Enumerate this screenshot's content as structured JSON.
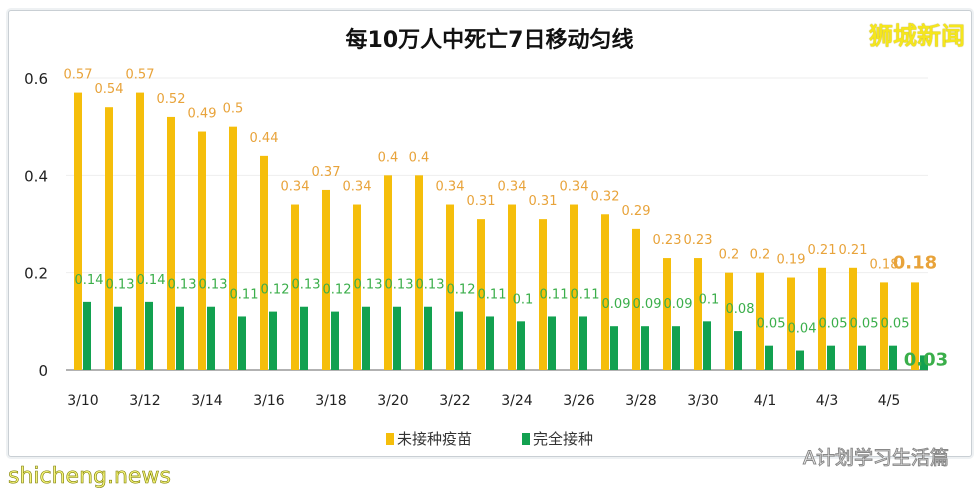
{
  "chart_data": {
    "type": "bar",
    "title": "每10万人中死亡7日移动匀线",
    "categories": [
      "3/10",
      "3/11",
      "3/12",
      "3/13",
      "3/14",
      "3/15",
      "3/16",
      "3/17",
      "3/18",
      "3/19",
      "3/20",
      "3/21",
      "3/22",
      "3/23",
      "3/24",
      "3/25",
      "3/26",
      "3/27",
      "3/28",
      "3/29",
      "3/30",
      "3/31",
      "4/1",
      "4/2",
      "4/3",
      "4/4",
      "4/5",
      "4/6"
    ],
    "tick_labels": [
      "3/10",
      "3/12",
      "3/14",
      "3/16",
      "3/18",
      "3/20",
      "3/22",
      "3/24",
      "3/26",
      "3/28",
      "3/30",
      "4/1",
      "4/3",
      "4/5"
    ],
    "y_ticks": [
      "0",
      "0.2",
      "0.4",
      "0.6"
    ],
    "ylim": [
      0,
      0.6
    ],
    "grid": true,
    "legend_position": "bottom",
    "series": [
      {
        "name": "未接种疫苗",
        "color": "#f5be0b",
        "label_color": "#e8a33a",
        "values": [
          0.57,
          0.54,
          0.57,
          0.52,
          0.49,
          0.5,
          0.44,
          0.34,
          0.37,
          0.34,
          0.4,
          0.4,
          0.34,
          0.31,
          0.34,
          0.31,
          0.34,
          0.32,
          0.29,
          0.23,
          0.23,
          0.2,
          0.2,
          0.19,
          0.21,
          0.21,
          0.18,
          0.18
        ]
      },
      {
        "name": "完全接种",
        "color": "#12a150",
        "label_color": "#3aae4a",
        "values": [
          0.14,
          0.13,
          0.14,
          0.13,
          0.13,
          0.11,
          0.12,
          0.13,
          0.12,
          0.13,
          0.13,
          0.13,
          0.12,
          0.11,
          0.1,
          0.11,
          0.11,
          0.09,
          0.09,
          0.09,
          0.1,
          0.08,
          0.05,
          0.04,
          0.05,
          0.05,
          0.05,
          0.03
        ]
      }
    ]
  },
  "watermarks": {
    "brand": "狮城新闻",
    "account": "A计划学习生活篇",
    "site": "shicheng.news"
  }
}
